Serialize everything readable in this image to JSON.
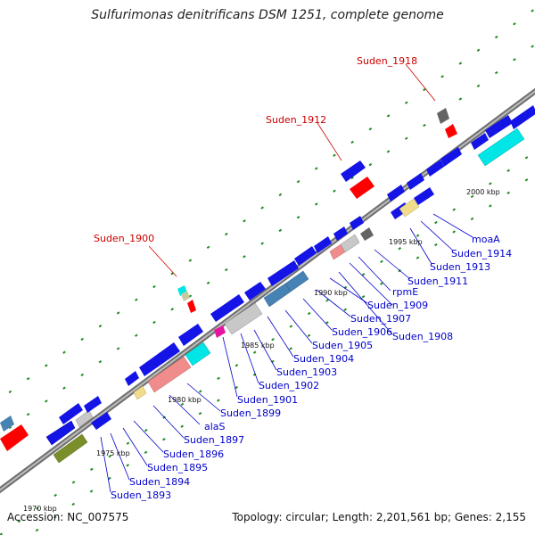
{
  "title": "Sulfurimonas denitrificans DSM 1251, complete genome",
  "accession": "Accession: NC_007575",
  "summary": "Topology: circular; Length: 2,201,561 bp; Genes: 2,155",
  "colors": {
    "cds": "#1414e6",
    "highlight_label": "#cc0000",
    "gene_label": "#0000cc",
    "backbone": "#8c8c8c",
    "tick": "#1e8c1e"
  },
  "scale_labels": [
    "1970 kbp",
    "1975 kbp",
    "1980 kbp",
    "1985 kbp",
    "1990 kbp",
    "1995 kbp",
    "2000 kbp"
  ],
  "highlighted_genes": [
    "Suden_1900",
    "Suden_1912",
    "Suden_1918"
  ],
  "gene_labels": [
    "Suden_1893",
    "Suden_1894",
    "Suden_1895",
    "Suden_1896",
    "Suden_1897",
    "alaS",
    "Suden_1899",
    "Suden_1901",
    "Suden_1902",
    "Suden_1903",
    "Suden_1904",
    "Suden_1905",
    "Suden_1906",
    "Suden_1907",
    "Suden_1908",
    "Suden_1909",
    "rpmE",
    "Suden_1911",
    "Suden_1913",
    "Suden_1914",
    "moaA"
  ]
}
